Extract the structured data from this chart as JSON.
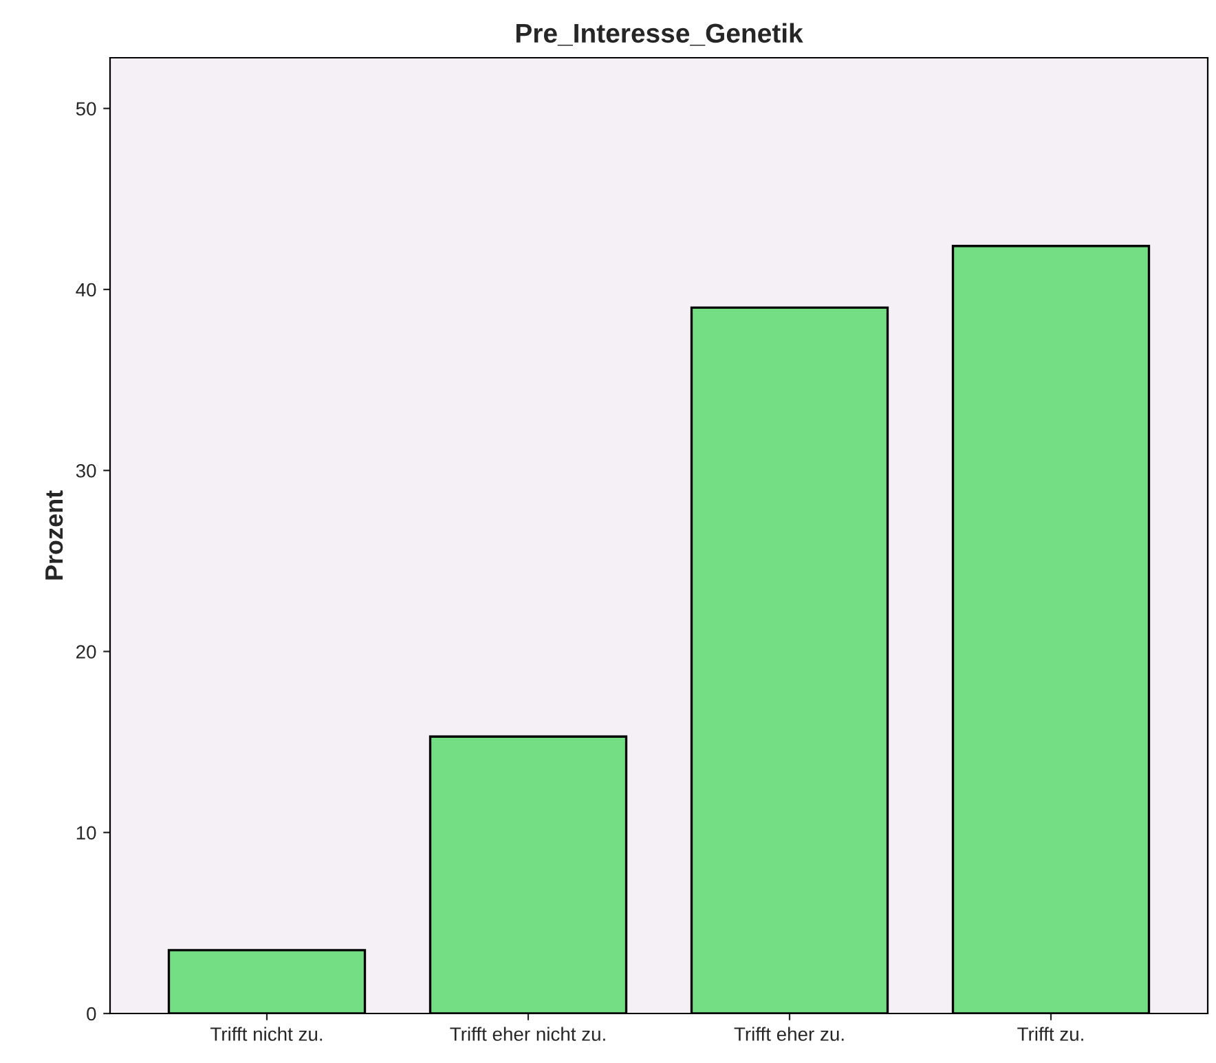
{
  "chart_data": {
    "type": "bar",
    "title": "Pre_Interesse_Genetik",
    "ylabel": "Prozent",
    "categories": [
      "Trifft nicht zu.",
      "Trifft eher nicht zu.",
      "Trifft eher zu.",
      "Trifft zu."
    ],
    "values": [
      3.5,
      15.3,
      39.0,
      42.4
    ],
    "color": "#74de84",
    "ylim": [
      0,
      52.8
    ],
    "yticks": [
      0,
      10,
      20,
      30,
      40,
      50
    ],
    "grid": false
  }
}
